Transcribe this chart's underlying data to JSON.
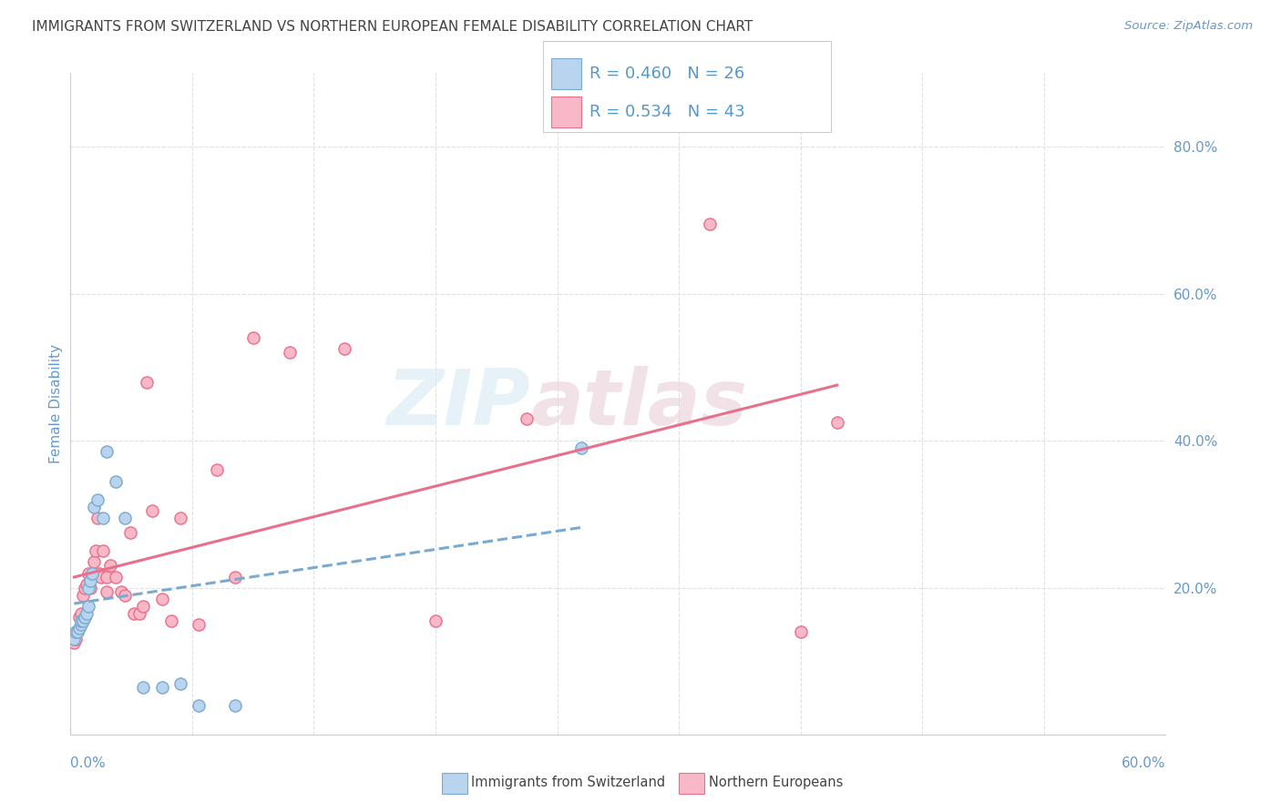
{
  "title": "IMMIGRANTS FROM SWITZERLAND VS NORTHERN EUROPEAN FEMALE DISABILITY CORRELATION CHART",
  "source": "Source: ZipAtlas.com",
  "xlabel_bottom_left": "0.0%",
  "xlabel_bottom_right": "60.0%",
  "ylabel": "Female Disability",
  "right_yticks": [
    "80.0%",
    "60.0%",
    "40.0%",
    "20.0%"
  ],
  "right_ytick_vals": [
    0.8,
    0.6,
    0.4,
    0.2
  ],
  "xlim": [
    0.0,
    0.6
  ],
  "ylim": [
    0.0,
    0.9
  ],
  "grid_color": "#e0e0e0",
  "background_color": "#ffffff",
  "series1": {
    "label": "Immigrants from Switzerland",
    "R": 0.46,
    "N": 26,
    "color": "#b8d4ee",
    "line_color": "#7aaad0",
    "x": [
      0.002,
      0.003,
      0.004,
      0.005,
      0.006,
      0.006,
      0.007,
      0.008,
      0.008,
      0.009,
      0.01,
      0.01,
      0.011,
      0.012,
      0.013,
      0.015,
      0.018,
      0.02,
      0.025,
      0.03,
      0.04,
      0.05,
      0.06,
      0.07,
      0.09,
      0.28
    ],
    "y": [
      0.13,
      0.14,
      0.14,
      0.145,
      0.15,
      0.155,
      0.155,
      0.16,
      0.16,
      0.165,
      0.175,
      0.2,
      0.21,
      0.22,
      0.31,
      0.32,
      0.295,
      0.385,
      0.345,
      0.295,
      0.065,
      0.065,
      0.07,
      0.04,
      0.04,
      0.39
    ]
  },
  "series2": {
    "label": "Northern Europeans",
    "R": 0.534,
    "N": 43,
    "color": "#f8b8c8",
    "line_color": "#e8708a",
    "x": [
      0.002,
      0.003,
      0.004,
      0.005,
      0.006,
      0.007,
      0.008,
      0.009,
      0.01,
      0.011,
      0.012,
      0.013,
      0.014,
      0.015,
      0.016,
      0.017,
      0.018,
      0.02,
      0.02,
      0.022,
      0.025,
      0.028,
      0.03,
      0.033,
      0.035,
      0.038,
      0.04,
      0.042,
      0.045,
      0.05,
      0.055,
      0.06,
      0.07,
      0.08,
      0.09,
      0.1,
      0.12,
      0.15,
      0.2,
      0.25,
      0.35,
      0.4,
      0.42
    ],
    "y": [
      0.125,
      0.13,
      0.14,
      0.16,
      0.165,
      0.19,
      0.2,
      0.205,
      0.22,
      0.2,
      0.215,
      0.235,
      0.25,
      0.295,
      0.22,
      0.215,
      0.25,
      0.195,
      0.215,
      0.23,
      0.215,
      0.195,
      0.19,
      0.275,
      0.165,
      0.165,
      0.175,
      0.48,
      0.305,
      0.185,
      0.155,
      0.295,
      0.15,
      0.36,
      0.215,
      0.54,
      0.52,
      0.525,
      0.155,
      0.43,
      0.695,
      0.14,
      0.425
    ]
  },
  "watermark_line1": "ZIP",
  "watermark_line2": "atlas",
  "legend_text_color": "#5599cc",
  "title_color": "#444444",
  "axis_label_color": "#6699cc",
  "reg_line1_x_start": 0.002,
  "reg_line1_x_end": 0.28,
  "reg_line2_x_start": 0.002,
  "reg_line2_x_end": 0.42
}
